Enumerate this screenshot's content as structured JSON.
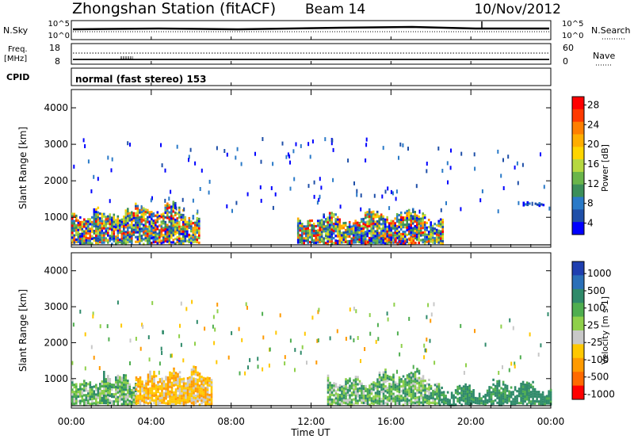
{
  "header": {
    "station": "Zhongshan Station (fitACF)",
    "beam": "Beam 14",
    "date": "10/Nov/2012"
  },
  "summary_panel": {
    "nsky_label": "N.Sky",
    "nsearch_label": "N.Search",
    "log_top": "10^5",
    "log_bottom": "10^0",
    "freq_label_line1": "Freq.",
    "freq_label_line2": "[MHz]",
    "freq_top": "18",
    "freq_bottom": "8",
    "nave_label": "Nave",
    "nave_top": "60",
    "nave_bottom": "0",
    "cpid_label": "CPID",
    "cpid_text": "normal (fast stereo) 153"
  },
  "chart_data": [
    {
      "type": "heatmap",
      "name": "power",
      "ylabel": "Slant Range [km]",
      "xlabel": "Time UT",
      "ylim": [
        180,
        4500
      ],
      "xlim": [
        0,
        24
      ],
      "y_ticks": [
        "1000",
        "2000",
        "3000",
        "4000"
      ],
      "x_ticks": [
        "00:00",
        "04:00",
        "08:00",
        "12:00",
        "16:00",
        "20:00",
        "00:00"
      ],
      "colorbar": {
        "label": "Power [dB]",
        "ticks": [
          "4",
          "8",
          "12",
          "16",
          "20",
          "24",
          "28"
        ],
        "colors": [
          "#0000ff",
          "#1f4fa8",
          "#2a7ac8",
          "#3c8f5a",
          "#6ab54a",
          "#b6d840",
          "#ffd500",
          "#ffae00",
          "#ff7f00",
          "#ff3a00",
          "#ff0000"
        ]
      },
      "regions": [
        {
          "t0": 0.0,
          "t1": 6.4,
          "r0": 300,
          "r1": 1400,
          "level": "mixed"
        },
        {
          "t0": 11.3,
          "t1": 18.6,
          "r0": 300,
          "r1": 1250,
          "level": "mixed"
        },
        {
          "t0": 14.8,
          "t1": 17.6,
          "r0": 300,
          "r1": 500,
          "level": "high"
        },
        {
          "t0": 21.5,
          "t1": 24.0,
          "r0": 1350,
          "r1": 1550,
          "level": "low"
        }
      ]
    },
    {
      "type": "heatmap",
      "name": "velocity",
      "ylabel": "Slant Range [km]",
      "xlabel": "Time UT",
      "ylim": [
        180,
        4500
      ],
      "xlim": [
        0,
        24
      ],
      "y_ticks": [
        "1000",
        "2000",
        "3000",
        "4000"
      ],
      "x_ticks": [
        "00:00",
        "04:00",
        "08:00",
        "12:00",
        "16:00",
        "20:00",
        "00:00"
      ],
      "colorbar": {
        "label": "Velocity [m s-1]",
        "ticks": [
          "1000",
          "500",
          "100",
          "25",
          "-25",
          "-100",
          "-500",
          "-1000"
        ],
        "colors": [
          "#1f3fb0",
          "#2a6fb8",
          "#2f8a6a",
          "#4fae4f",
          "#8fd04a",
          "#c8c8c8",
          "#ffc800",
          "#ff9a00",
          "#ff6a00",
          "#ff0000"
        ]
      },
      "regions": [
        {
          "t0": 0.0,
          "t1": 3.2,
          "r0": 300,
          "r1": 1200,
          "level": "green"
        },
        {
          "t0": 3.2,
          "t1": 7.0,
          "r0": 300,
          "r1": 1350,
          "level": "orange"
        },
        {
          "t0": 12.8,
          "t1": 18.4,
          "r0": 300,
          "r1": 1250,
          "level": "green"
        },
        {
          "t0": 18.4,
          "t1": 24.0,
          "r0": 300,
          "r1": 1000,
          "level": "darkgreen"
        }
      ]
    }
  ],
  "axis": {
    "x_title": "Time UT",
    "y_title": "Slant Range [km]"
  }
}
